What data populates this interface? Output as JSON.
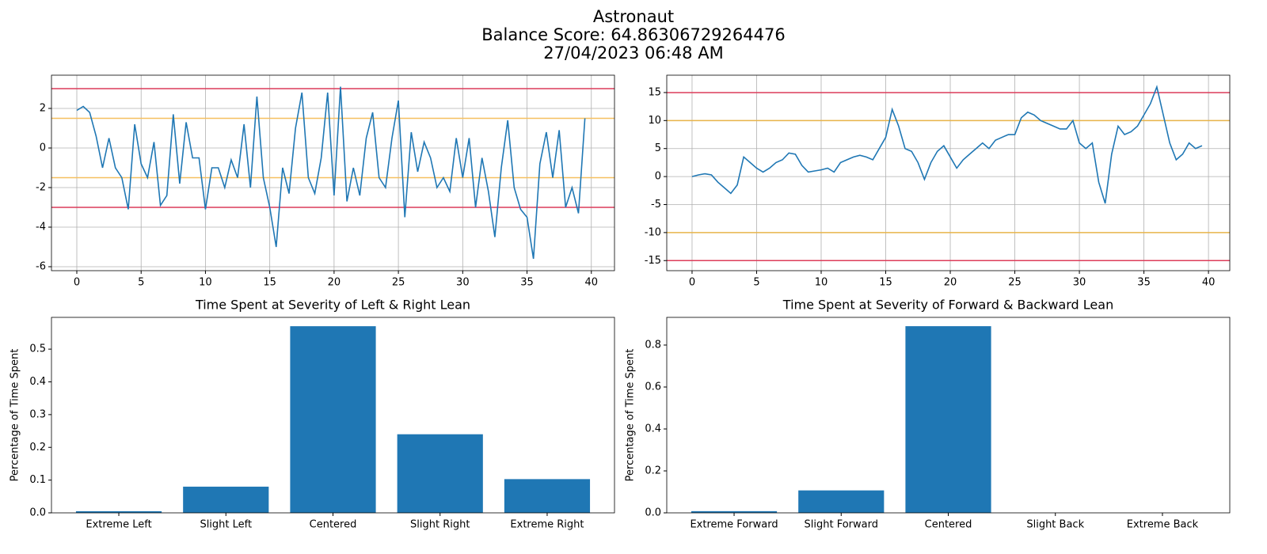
{
  "title": [
    "Astronaut",
    "Balance Score: 64.86306729264476",
    "27/04/2023 06:48 AM"
  ],
  "chart_data": [
    {
      "type": "line",
      "color": "#1f77b4",
      "grid": true,
      "x": [
        0,
        0.5,
        1,
        1.5,
        2,
        2.5,
        3,
        3.5,
        4,
        4.5,
        5,
        5.5,
        6,
        6.5,
        7,
        7.5,
        8,
        8.5,
        9,
        9.5,
        10,
        10.5,
        11,
        11.5,
        12,
        12.5,
        13,
        13.5,
        14,
        14.5,
        15,
        15.5,
        16,
        16.5,
        17,
        17.5,
        18,
        18.5,
        19,
        19.5,
        20,
        20.5,
        21,
        21.5,
        22,
        22.5,
        23,
        23.5,
        24,
        24.5,
        25,
        25.5,
        26,
        26.5,
        27,
        27.5,
        28,
        28.5,
        29,
        29.5,
        30,
        30.5,
        31,
        31.5,
        32,
        32.5,
        33,
        33.5,
        34,
        34.5,
        35,
        35.5,
        36,
        36.5,
        37,
        37.5,
        38,
        38.5,
        39,
        39.5
      ],
      "values": [
        1.9,
        2.1,
        1.8,
        0.6,
        -1.0,
        0.5,
        -1.0,
        -1.5,
        -3.1,
        1.2,
        -0.8,
        -1.5,
        0.3,
        -2.9,
        -2.4,
        1.7,
        -1.8,
        1.3,
        -0.5,
        -0.5,
        -3.1,
        -1.0,
        -1.0,
        -2.0,
        -0.6,
        -1.5,
        1.2,
        -2.0,
        2.6,
        -1.5,
        -3.0,
        -5.0,
        -1.0,
        -2.3,
        1.0,
        2.8,
        -1.5,
        -2.3,
        -0.5,
        2.8,
        -2.4,
        3.1,
        -2.7,
        -1.0,
        -2.4,
        0.5,
        1.8,
        -1.5,
        -2.0,
        0.5,
        2.4,
        -3.5,
        0.8,
        -1.2,
        0.3,
        -0.5,
        -2.0,
        -1.5,
        -2.2,
        0.5,
        -1.5,
        0.5,
        -3.0,
        -0.5,
        -2.2,
        -4.5,
        -1.0,
        1.4,
        -2.0,
        -3.1,
        -3.5,
        -5.6,
        -0.8,
        0.8,
        -1.5,
        0.9,
        -3.0,
        -2.0,
        -3.3,
        1.5
      ],
      "hlines": [
        {
          "value": 3,
          "color": "#dc3c5a"
        },
        {
          "value": 1.5,
          "color": "#f5c060"
        },
        {
          "value": -1.5,
          "color": "#f5c060"
        },
        {
          "value": -3,
          "color": "#dc3c5a"
        }
      ],
      "xlim": [
        -1.97,
        41.8
      ],
      "xticks": [
        0,
        5,
        10,
        15,
        20,
        25,
        30,
        35,
        40
      ],
      "ylim": [
        -6.2,
        3.68
      ],
      "yticks": [
        -6,
        -4,
        -2,
        0,
        2
      ]
    },
    {
      "type": "line",
      "color": "#1f77b4",
      "grid": true,
      "x": [
        0,
        0.5,
        1,
        1.5,
        2,
        2.5,
        3,
        3.5,
        4,
        4.5,
        5,
        5.5,
        6,
        6.5,
        7,
        7.5,
        8,
        8.5,
        9,
        9.5,
        10,
        10.5,
        11,
        11.5,
        12,
        12.5,
        13,
        13.5,
        14,
        14.5,
        15,
        15.5,
        16,
        16.5,
        17,
        17.5,
        18,
        18.5,
        19,
        19.5,
        20,
        20.5,
        21,
        21.5,
        22,
        22.5,
        23,
        23.5,
        24,
        24.5,
        25,
        25.5,
        26,
        26.5,
        27,
        27.5,
        28,
        28.5,
        29,
        29.5,
        30,
        30.5,
        31,
        31.5,
        32,
        32.5,
        33,
        33.5,
        34,
        34.5,
        35,
        35.5,
        36,
        36.5,
        37,
        37.5,
        38,
        38.5,
        39,
        39.5
      ],
      "values": [
        0,
        0.3,
        0.5,
        0.3,
        -1.0,
        -2.0,
        -3.0,
        -1.5,
        3.5,
        2.5,
        1.5,
        0.8,
        1.5,
        2.5,
        3.0,
        4.2,
        4.0,
        2.0,
        0.8,
        1.0,
        1.2,
        1.5,
        0.8,
        2.5,
        3.0,
        3.5,
        3.8,
        3.5,
        3.0,
        5.0,
        7.0,
        12.0,
        9.0,
        5.0,
        4.5,
        2.5,
        -0.5,
        2.5,
        4.5,
        5.5,
        3.5,
        1.5,
        3.0,
        4.0,
        5.0,
        6.0,
        5.0,
        6.5,
        7.0,
        7.5,
        7.5,
        10.5,
        11.5,
        11.0,
        10.0,
        9.5,
        9.0,
        8.5,
        8.5,
        10.0,
        6.0,
        5.0,
        6.0,
        -1.0,
        -4.8,
        4.0,
        9.0,
        7.5,
        8.0,
        9.0,
        11.0,
        13.0,
        16.0,
        11.0,
        6.0,
        3.0,
        4.0,
        6.0,
        5.0,
        5.5
      ],
      "hlines": [
        {
          "value": 15,
          "color": "#dc3c5a"
        },
        {
          "value": 10,
          "color": "#e8b44a"
        },
        {
          "value": -10,
          "color": "#e8b44a"
        },
        {
          "value": -15,
          "color": "#dc3c5a"
        }
      ],
      "xlim": [
        -1.96,
        41.65
      ],
      "xticks": [
        0,
        5,
        10,
        15,
        20,
        25,
        30,
        35,
        40
      ],
      "ylim": [
        -16.8,
        18.1
      ],
      "yticks": [
        -15,
        -10,
        -5,
        0,
        5,
        10,
        15
      ]
    },
    {
      "type": "bar",
      "title": "Time Spent at Severity of Left & Right Lean",
      "ylabel": "Percentage of Time Spent",
      "color": "#1f77b4",
      "grid": false,
      "categories": [
        "Extreme Left",
        "Slight Left",
        "Centered",
        "Slight Right",
        "Extreme Right"
      ],
      "values": [
        0.005,
        0.08,
        0.57,
        0.24,
        0.103
      ],
      "ylim": [
        0,
        0.597
      ],
      "yticks": [
        {
          "value": 0,
          "label": "0.0"
        },
        0.1,
        0.2,
        0.3,
        0.4,
        0.5
      ]
    },
    {
      "type": "bar",
      "title": "Time Spent at Severity of Forward & Backward Lean",
      "ylabel": "Percentage of Time Spent",
      "color": "#1f77b4",
      "grid": false,
      "categories": [
        "Extreme Forward",
        "Slight Forward",
        "Centered",
        "Slight Back",
        "Extreme Back"
      ],
      "values": [
        0.008,
        0.107,
        0.89,
        0,
        0
      ],
      "ylim": [
        0,
        0.932
      ],
      "yticks": [
        {
          "value": 0,
          "label": "0.0"
        },
        0.2,
        0.4,
        0.6,
        0.8
      ]
    }
  ]
}
